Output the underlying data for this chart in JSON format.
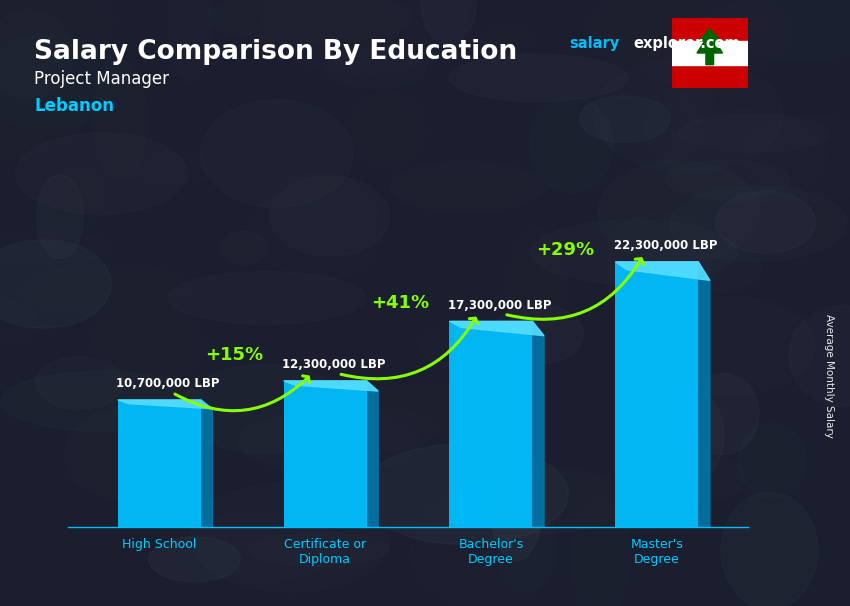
{
  "title": "Salary Comparison By Education",
  "subtitle": "Project Manager",
  "country": "Lebanon",
  "categories": [
    "High School",
    "Certificate or\nDiploma",
    "Bachelor's\nDegree",
    "Master's\nDegree"
  ],
  "values": [
    10700000,
    12300000,
    17300000,
    22300000
  ],
  "value_labels": [
    "10,700,000 LBP",
    "12,300,000 LBP",
    "17,300,000 LBP",
    "22,300,000 LBP"
  ],
  "pct_changes": [
    "+15%",
    "+41%",
    "+29%"
  ],
  "bar_color": "#00BFFF",
  "bar_right_color": "#0077AA",
  "bar_top_color": "#55DDFF",
  "bg_color": "#1c2333",
  "title_color": "#FFFFFF",
  "subtitle_color": "#FFFFFF",
  "country_color": "#00CCFF",
  "xtick_color": "#00CCFF",
  "pct_color": "#88FF00",
  "arrow_color": "#88FF00",
  "website_color1": "#00BFFF",
  "website_color2": "#FFFFFF",
  "side_label": "Average Monthly Salary",
  "ylim": [
    0,
    28000000
  ],
  "bar_width": 0.5,
  "side_depth": 0.07,
  "figsize": [
    8.5,
    6.06
  ],
  "dpi": 100
}
